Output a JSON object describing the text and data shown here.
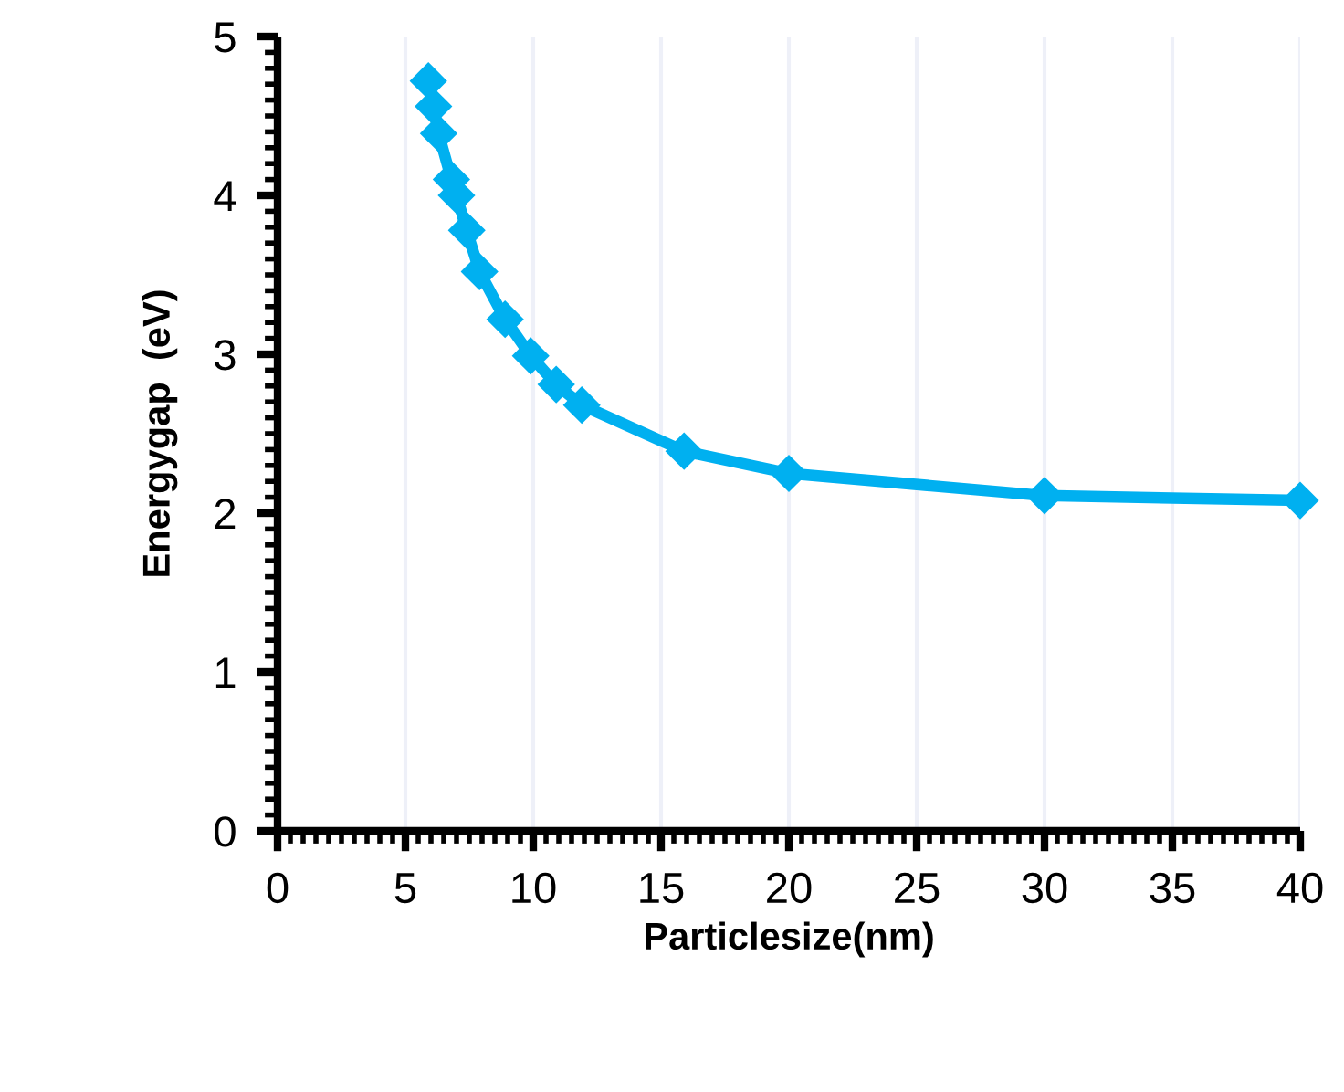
{
  "chart_data": {
    "type": "line",
    "xlabel": "Particlesize(nm)",
    "ylabel": "Energygap  (eV)",
    "x": [
      5.9,
      6.1,
      6.3,
      6.8,
      7.0,
      7.4,
      7.9,
      8.9,
      9.9,
      10.9,
      11.9,
      15.9,
      20,
      30,
      40
    ],
    "series": [
      {
        "color": "#00b0f0",
        "values": [
          4.72,
          4.56,
          4.39,
          4.1,
          4.0,
          3.78,
          3.52,
          3.22,
          2.99,
          2.81,
          2.68,
          2.39,
          2.25,
          2.11,
          2.08
        ]
      }
    ],
    "marker": "diamond",
    "xlim": [
      0,
      40
    ],
    "xticks": [
      0,
      5,
      10,
      15,
      20,
      25,
      30,
      35,
      40
    ],
    "ylim": [
      0,
      5
    ],
    "yticks": [
      0,
      1,
      2,
      3,
      4,
      5
    ],
    "grid": "x",
    "legend": false
  }
}
